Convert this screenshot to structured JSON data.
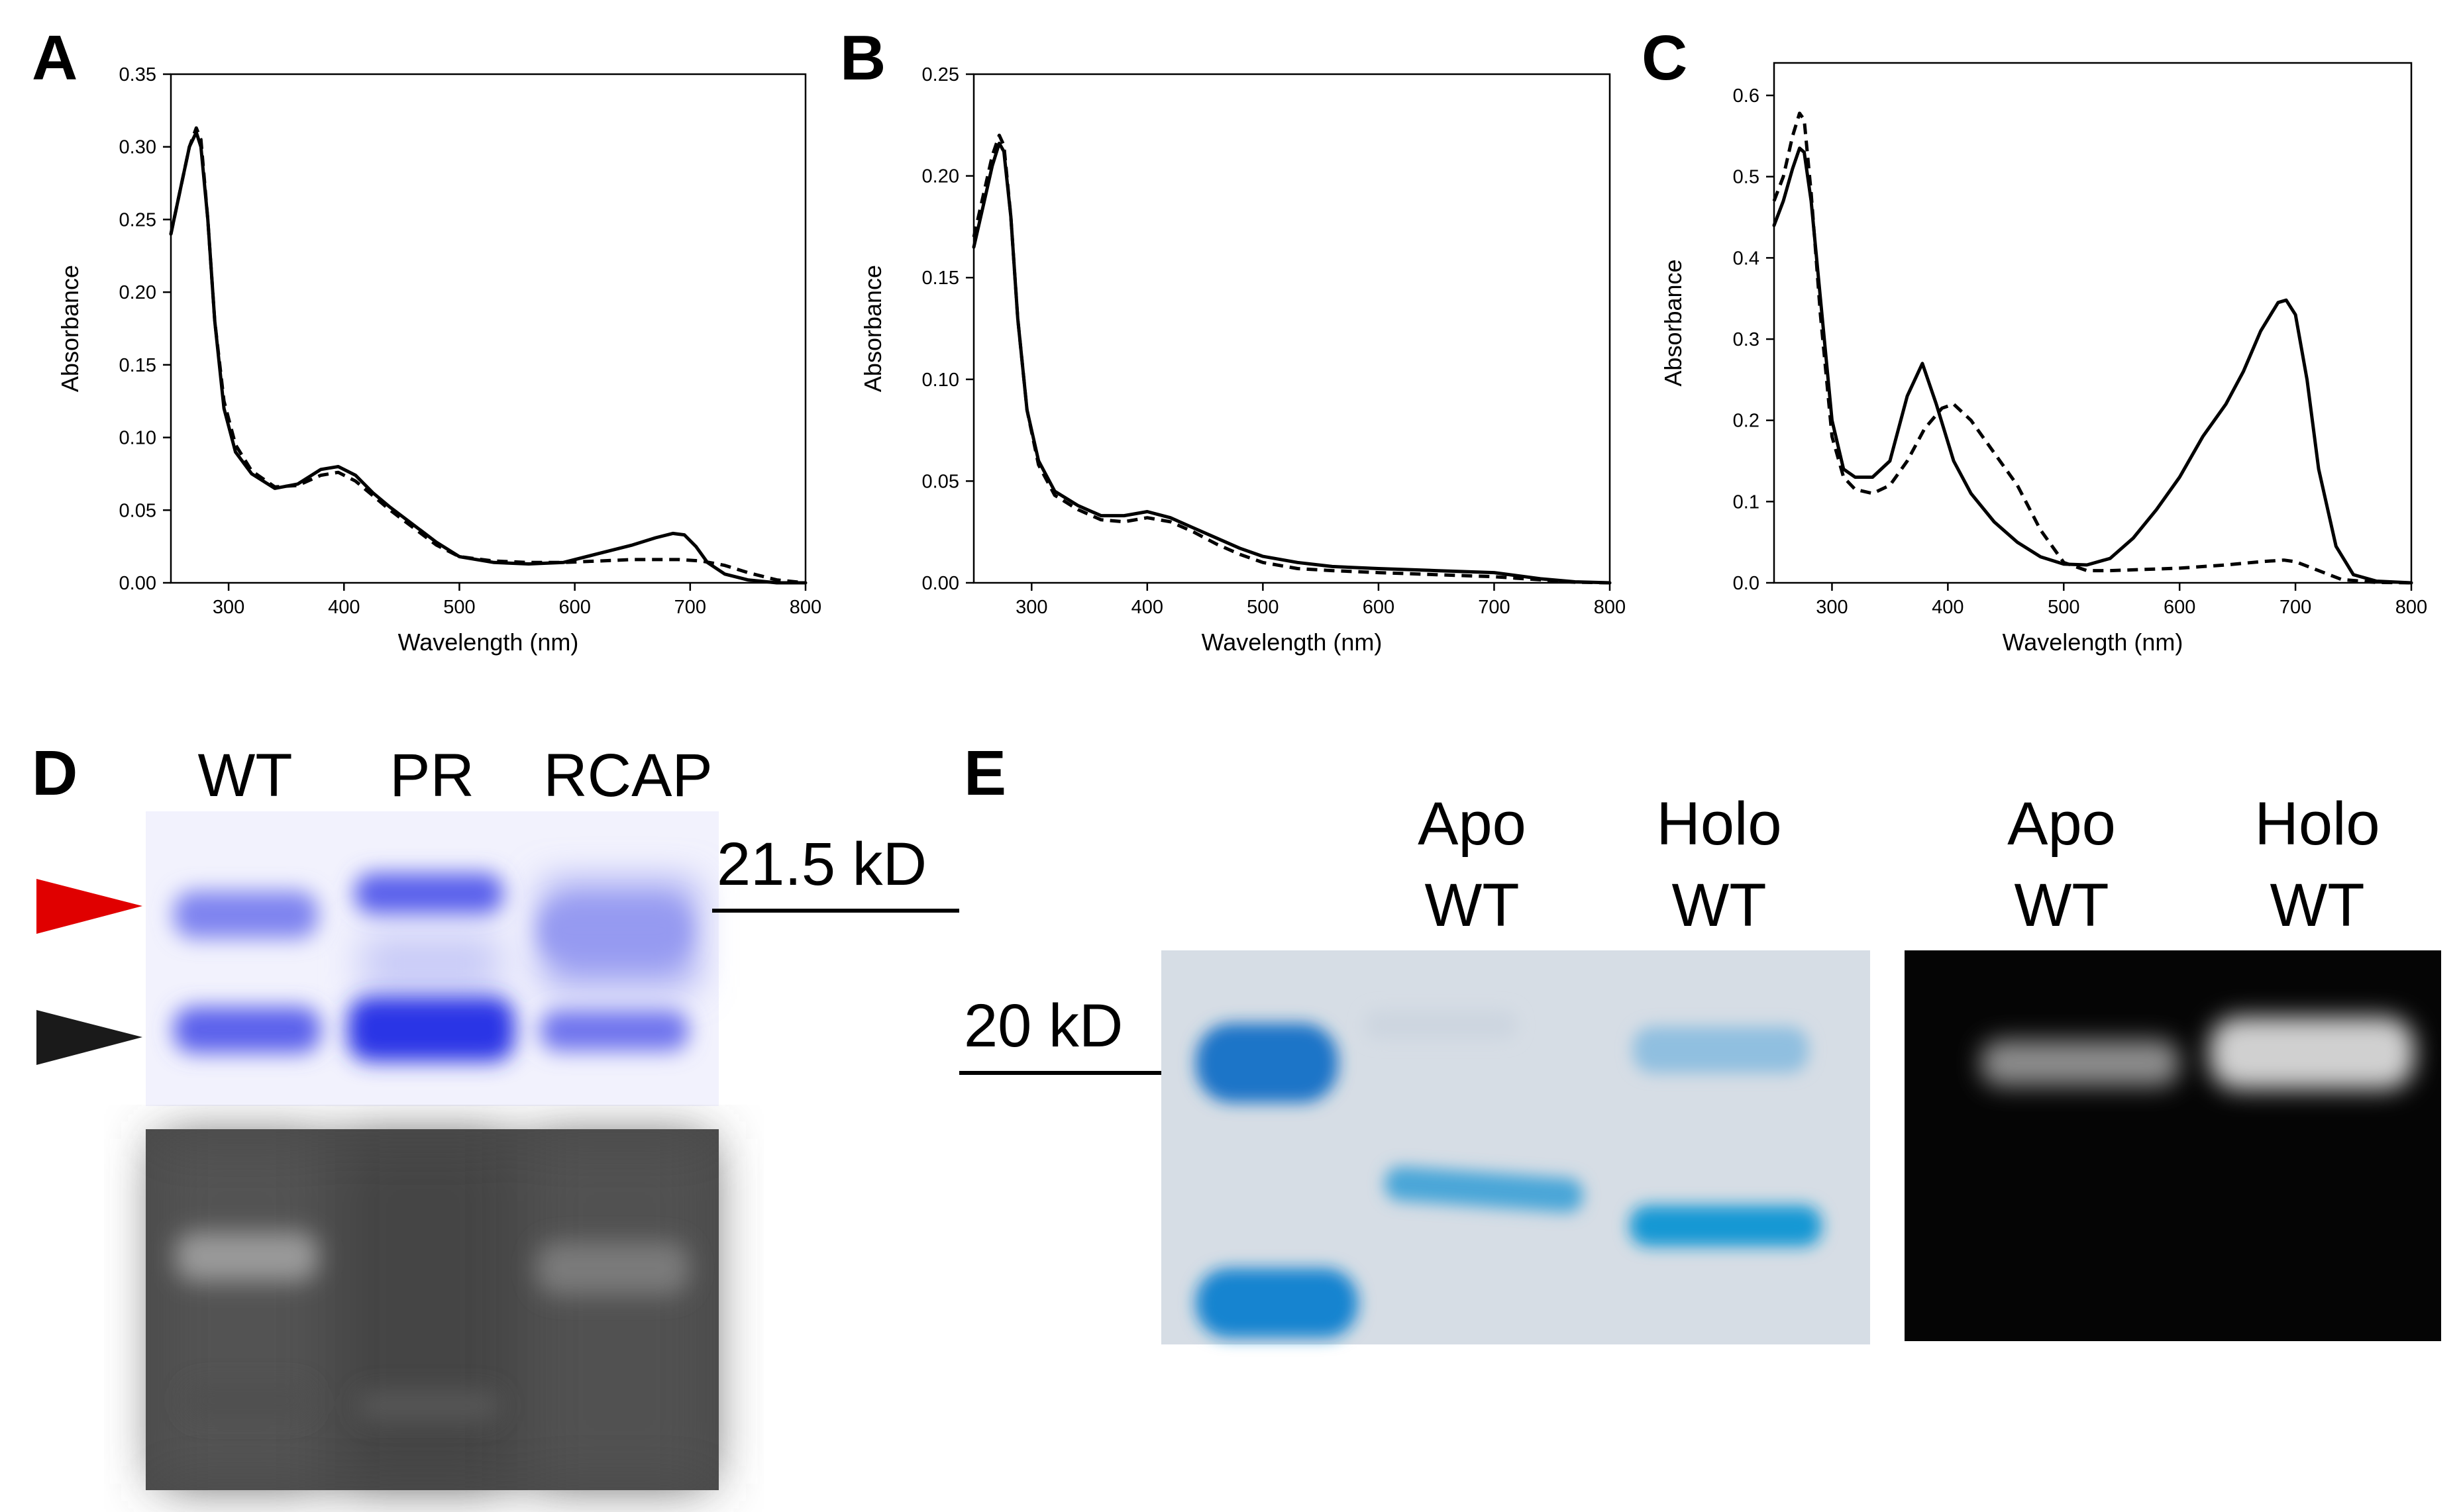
{
  "panel_letters": {
    "a": "A",
    "b": "B",
    "c": "C",
    "d": "D",
    "e": "E"
  },
  "chart_data": [
    {
      "type": "line",
      "panel": "A",
      "xlabel": "Wavelength (nm)",
      "ylabel": "Absorbance",
      "xlim": [
        250,
        800
      ],
      "ylim": [
        0,
        0.35
      ],
      "xticks": [
        300,
        400,
        500,
        600,
        700,
        800
      ],
      "yticks": [
        0.0,
        0.05,
        0.1,
        0.15,
        0.2,
        0.25,
        0.3,
        0.35
      ],
      "ytick_decimals": 2,
      "series": [
        {
          "style": "solid",
          "x": [
            250,
            258,
            266,
            272,
            276,
            282,
            288,
            296,
            306,
            320,
            340,
            360,
            380,
            395,
            410,
            425,
            440,
            460,
            480,
            500,
            530,
            560,
            590,
            620,
            650,
            670,
            685,
            695,
            705,
            715,
            730,
            750,
            775,
            800
          ],
          "y": [
            0.24,
            0.27,
            0.3,
            0.31,
            0.3,
            0.25,
            0.18,
            0.12,
            0.09,
            0.075,
            0.065,
            0.068,
            0.078,
            0.08,
            0.074,
            0.062,
            0.052,
            0.04,
            0.028,
            0.018,
            0.014,
            0.013,
            0.014,
            0.02,
            0.026,
            0.031,
            0.034,
            0.033,
            0.025,
            0.014,
            0.006,
            0.002,
            0.0,
            0.0
          ]
        },
        {
          "style": "dashed",
          "x": [
            250,
            258,
            266,
            272,
            276,
            282,
            288,
            296,
            306,
            320,
            340,
            360,
            380,
            395,
            410,
            425,
            440,
            460,
            480,
            500,
            530,
            560,
            590,
            620,
            650,
            670,
            690,
            710,
            730,
            750,
            775,
            800
          ],
          "y": [
            0.24,
            0.27,
            0.3,
            0.313,
            0.305,
            0.25,
            0.18,
            0.125,
            0.095,
            0.077,
            0.066,
            0.067,
            0.074,
            0.076,
            0.07,
            0.06,
            0.05,
            0.038,
            0.026,
            0.018,
            0.015,
            0.014,
            0.014,
            0.015,
            0.016,
            0.016,
            0.016,
            0.015,
            0.012,
            0.007,
            0.002,
            0.0
          ]
        }
      ]
    },
    {
      "type": "line",
      "panel": "B",
      "xlabel": "Wavelength (nm)",
      "ylabel": "Absorbance",
      "xlim": [
        250,
        800
      ],
      "ylim": [
        0,
        0.25
      ],
      "xticks": [
        300,
        400,
        500,
        600,
        700,
        800
      ],
      "yticks": [
        0.0,
        0.05,
        0.1,
        0.15,
        0.2,
        0.25
      ],
      "ytick_decimals": 2,
      "series": [
        {
          "style": "solid",
          "x": [
            250,
            258,
            266,
            272,
            276,
            282,
            288,
            296,
            306,
            320,
            340,
            360,
            380,
            400,
            420,
            440,
            460,
            480,
            500,
            530,
            560,
            600,
            650,
            700,
            740,
            770,
            800
          ],
          "y": [
            0.165,
            0.185,
            0.205,
            0.216,
            0.212,
            0.18,
            0.13,
            0.085,
            0.06,
            0.045,
            0.038,
            0.033,
            0.033,
            0.035,
            0.032,
            0.027,
            0.022,
            0.017,
            0.013,
            0.01,
            0.008,
            0.007,
            0.006,
            0.005,
            0.002,
            0.0005,
            0.0
          ]
        },
        {
          "style": "dashed",
          "x": [
            250,
            258,
            266,
            272,
            276,
            282,
            288,
            296,
            306,
            320,
            340,
            360,
            380,
            400,
            420,
            440,
            460,
            480,
            500,
            530,
            560,
            600,
            650,
            700,
            740,
            770,
            800
          ],
          "y": [
            0.17,
            0.19,
            0.21,
            0.22,
            0.215,
            0.18,
            0.13,
            0.085,
            0.058,
            0.043,
            0.036,
            0.031,
            0.03,
            0.032,
            0.03,
            0.025,
            0.019,
            0.014,
            0.01,
            0.007,
            0.006,
            0.005,
            0.004,
            0.003,
            0.0015,
            0.0003,
            0.0
          ]
        }
      ]
    },
    {
      "type": "line",
      "panel": "C",
      "xlabel": "Wavelength (nm)",
      "ylabel": "Absorbance",
      "xlim": [
        250,
        800
      ],
      "ylim": [
        0,
        0.64
      ],
      "xticks": [
        300,
        400,
        500,
        600,
        700,
        800
      ],
      "yticks": [
        0.0,
        0.1,
        0.2,
        0.3,
        0.4,
        0.5,
        0.6
      ],
      "ytick_decimals": 1,
      "series": [
        {
          "style": "solid",
          "x": [
            250,
            258,
            266,
            272,
            276,
            282,
            290,
            300,
            310,
            320,
            335,
            350,
            365,
            378,
            390,
            405,
            420,
            440,
            460,
            480,
            500,
            520,
            540,
            560,
            580,
            600,
            620,
            640,
            655,
            670,
            685,
            692,
            700,
            710,
            720,
            735,
            750,
            770,
            800
          ],
          "y": [
            0.44,
            0.47,
            0.51,
            0.535,
            0.53,
            0.47,
            0.35,
            0.2,
            0.14,
            0.13,
            0.13,
            0.15,
            0.23,
            0.27,
            0.22,
            0.15,
            0.11,
            0.075,
            0.05,
            0.032,
            0.023,
            0.022,
            0.03,
            0.055,
            0.09,
            0.13,
            0.18,
            0.22,
            0.26,
            0.31,
            0.345,
            0.348,
            0.33,
            0.25,
            0.14,
            0.045,
            0.01,
            0.002,
            0.0
          ]
        },
        {
          "style": "dashed",
          "x": [
            250,
            258,
            266,
            272,
            276,
            282,
            290,
            300,
            310,
            320,
            335,
            350,
            365,
            380,
            395,
            405,
            420,
            440,
            460,
            480,
            500,
            520,
            540,
            560,
            600,
            640,
            670,
            690,
            700,
            720,
            740,
            770,
            800
          ],
          "y": [
            0.47,
            0.5,
            0.55,
            0.578,
            0.57,
            0.48,
            0.33,
            0.18,
            0.13,
            0.115,
            0.11,
            0.12,
            0.15,
            0.19,
            0.215,
            0.22,
            0.2,
            0.16,
            0.12,
            0.065,
            0.025,
            0.015,
            0.015,
            0.016,
            0.018,
            0.022,
            0.026,
            0.028,
            0.026,
            0.015,
            0.004,
            0.0005,
            0.0
          ]
        }
      ]
    }
  ],
  "gel_d": {
    "lanes": [
      "WT",
      "PR",
      "RCAP"
    ],
    "marker": "21.5 kD",
    "arrow_colors": {
      "upper": "#e00000",
      "lower": "#1a1a1a"
    }
  },
  "gel_e": {
    "marker": "20 kD",
    "coomassie_lanes": [
      {
        "line1": "Apo",
        "line2": "WT"
      },
      {
        "line1": "Holo",
        "line2": "WT"
      }
    ],
    "fluorescence_lanes": [
      {
        "line1": "Apo",
        "line2": "WT"
      },
      {
        "line1": "Holo",
        "line2": "WT"
      }
    ]
  },
  "colors": {
    "coomassie_d": "#4a50e8",
    "coomassie_e": "#1f88d0",
    "gel_bg_d": "#f2f2fd",
    "gel_bg_e": "#d6dde5",
    "fluor_bg_d": "#4a4a4a",
    "fluor_bg_e": "#050505"
  }
}
